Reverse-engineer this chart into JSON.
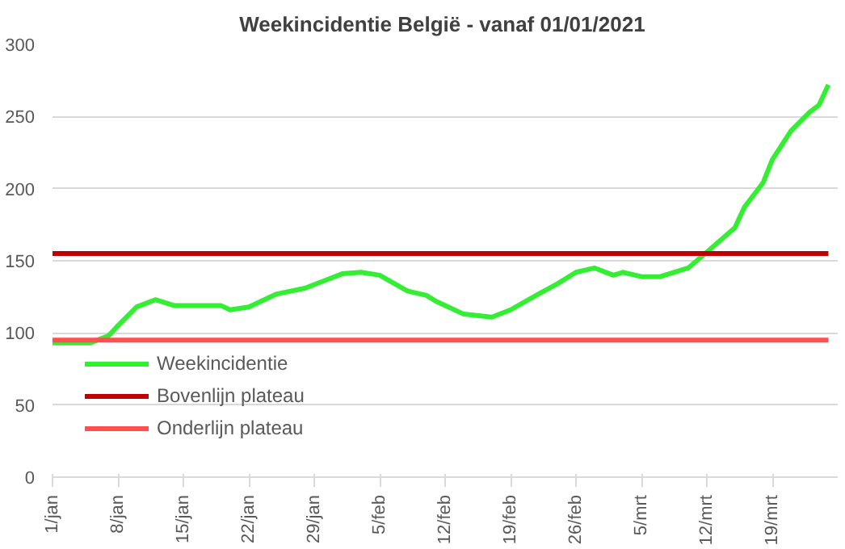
{
  "chart_data": {
    "type": "line",
    "title": "Weekincidentie  België - vanaf 01/01/2021",
    "series": [
      {
        "name": "Weekincidentie",
        "color": "#33ee33",
        "x": [
          "2021-01-01",
          "2021-01-05",
          "2021-01-07",
          "2021-01-08",
          "2021-01-10",
          "2021-01-12",
          "2021-01-14",
          "2021-01-19",
          "2021-01-20",
          "2021-01-22",
          "2021-01-25",
          "2021-01-28",
          "2021-01-30",
          "2021-02-01",
          "2021-02-03",
          "2021-02-05",
          "2021-02-08",
          "2021-02-10",
          "2021-02-11",
          "2021-02-14",
          "2021-02-17",
          "2021-02-19",
          "2021-02-22",
          "2021-02-24",
          "2021-02-26",
          "2021-02-28",
          "2021-03-02",
          "2021-03-03",
          "2021-03-05",
          "2021-03-07",
          "2021-03-10",
          "2021-03-12",
          "2021-03-15",
          "2021-03-16",
          "2021-03-18",
          "2021-03-19",
          "2021-03-21",
          "2021-03-23",
          "2021-03-24",
          "2021-03-25"
        ],
        "values": [
          93,
          93,
          98,
          105,
          118,
          123,
          119,
          119,
          116,
          118,
          127,
          131,
          136,
          141,
          142,
          140,
          129,
          126,
          122,
          113,
          111,
          116,
          127,
          134,
          142,
          145,
          140,
          142,
          139,
          139,
          145,
          156,
          173,
          187,
          204,
          220,
          240,
          253,
          258,
          272
        ]
      },
      {
        "name": "Bovenlijn plateau",
        "color": "#c00000",
        "x": [
          "2021-01-01",
          "2021-03-25"
        ],
        "values": [
          155,
          155
        ]
      },
      {
        "name": "Onderlijn plateau",
        "color": "#ff5050",
        "x": [
          "2021-01-01",
          "2021-03-25"
        ],
        "values": [
          95,
          95
        ]
      }
    ],
    "xlim": [
      "2021-01-01",
      "2021-03-26"
    ],
    "xticks": [
      {
        "value": "2021-01-01",
        "label": "1/jan"
      },
      {
        "value": "2021-01-08",
        "label": "8/jan"
      },
      {
        "value": "2021-01-15",
        "label": "15/jan"
      },
      {
        "value": "2021-01-22",
        "label": "22/jan"
      },
      {
        "value": "2021-01-29",
        "label": "29/jan"
      },
      {
        "value": "2021-02-05",
        "label": "5/feb"
      },
      {
        "value": "2021-02-12",
        "label": "12/feb"
      },
      {
        "value": "2021-02-19",
        "label": "19/feb"
      },
      {
        "value": "2021-02-26",
        "label": "26/feb"
      },
      {
        "value": "2021-03-05",
        "label": "5/mrt"
      },
      {
        "value": "2021-03-12",
        "label": "12/mrt"
      },
      {
        "value": "2021-03-19",
        "label": "19/mrt"
      }
    ],
    "ylim": [
      0,
      300
    ],
    "yticks": [
      0,
      50,
      100,
      150,
      200,
      250,
      300
    ],
    "grid": "y",
    "legend": "bottom left",
    "marker": "none",
    "line_style": "solid"
  }
}
